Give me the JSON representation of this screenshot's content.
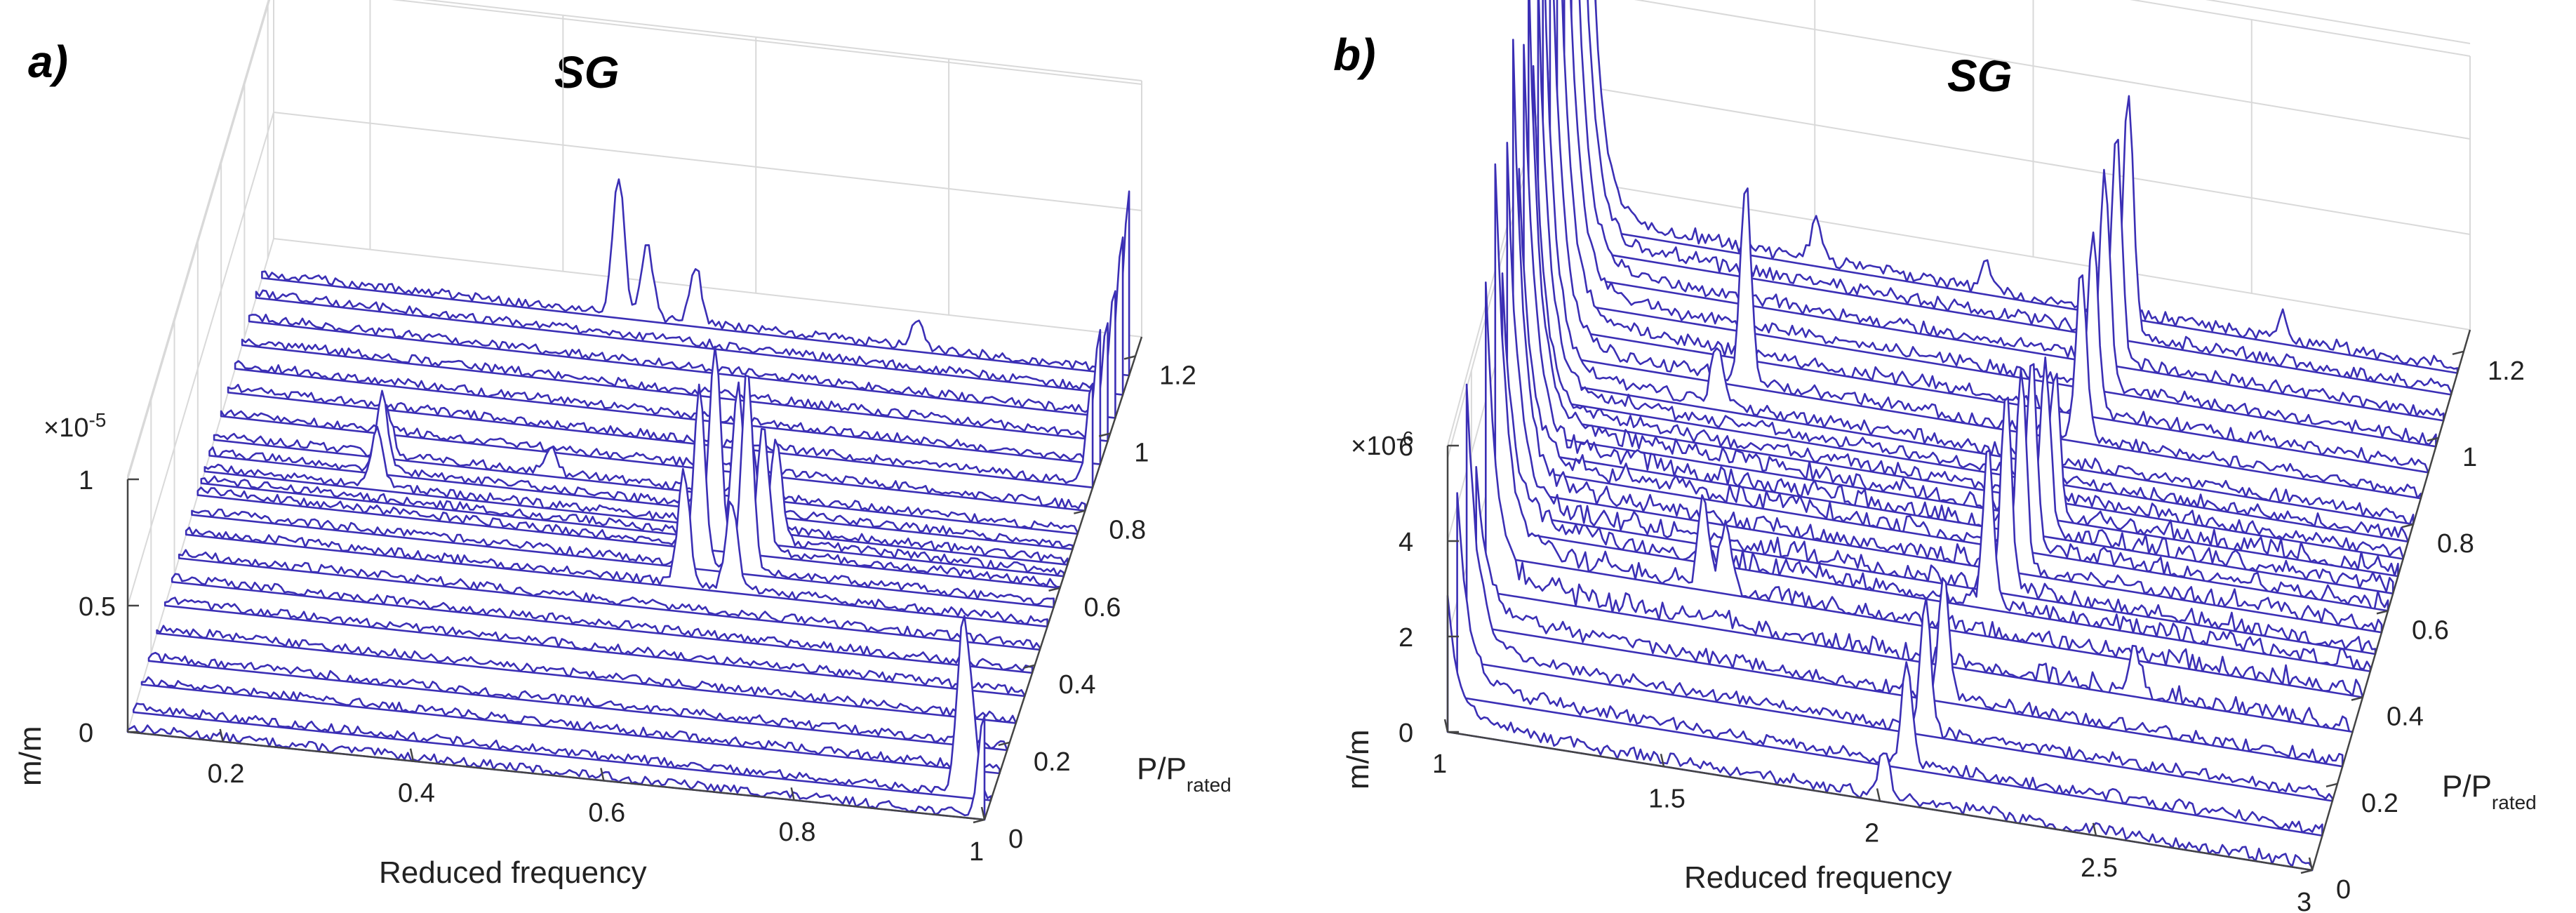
{
  "chart_data": [
    {
      "panel": "a)",
      "type": "line",
      "subtype": "3d-waterfall",
      "title": "SG",
      "xlabel": "Reduced frequency",
      "ylabel": "P/Prated",
      "ylabel_main": "P/P",
      "ylabel_sub": "rated",
      "zlabel": "m/m",
      "zscale": "×10-5",
      "zscale_base": "×10",
      "zscale_exp": "-5",
      "xlim": [
        0.1,
        1.0
      ],
      "ylim": [
        0,
        1.25
      ],
      "zlim": [
        0,
        1.0
      ],
      "xticks": [
        0.2,
        0.4,
        0.6,
        0.8,
        1
      ],
      "xtick_labels": [
        "0.2",
        "0.4",
        "0.6",
        "0.8",
        "1"
      ],
      "yticks": [
        0,
        0.2,
        0.4,
        0.6,
        0.8,
        1,
        1.2
      ],
      "ytick_labels": [
        "0",
        "0.2",
        "0.4",
        "0.6",
        "0.8",
        "1",
        "1.2"
      ],
      "zticks": [
        0,
        0.5,
        1
      ],
      "ztick_labels": [
        "0",
        "0.5",
        "1"
      ],
      "power_levels": [
        0.0,
        0.05,
        0.12,
        0.18,
        0.25,
        0.32,
        0.38,
        0.44,
        0.5,
        0.55,
        0.6,
        0.63,
        0.66,
        0.7,
        0.74,
        0.8,
        0.86,
        0.92,
        0.98,
        1.04,
        1.1,
        1.15
      ],
      "peaks": [
        {
          "p": 0.0,
          "f": 1.0,
          "a": 0.4
        },
        {
          "p": 0.05,
          "f": 0.97,
          "a": 0.6
        },
        {
          "p": 0.05,
          "f": 0.98,
          "a": 0.3
        },
        {
          "p": 0.5,
          "f": 0.62,
          "a": 0.45
        },
        {
          "p": 0.5,
          "f": 0.67,
          "a": 0.35
        },
        {
          "p": 0.55,
          "f": 0.63,
          "a": 0.7
        },
        {
          "p": 0.55,
          "f": 0.68,
          "a": 0.8
        },
        {
          "p": 0.6,
          "f": 0.64,
          "a": 0.8
        },
        {
          "p": 0.6,
          "f": 0.69,
          "a": 0.5
        },
        {
          "p": 0.63,
          "f": 0.66,
          "a": 0.6
        },
        {
          "p": 0.63,
          "f": 0.7,
          "a": 0.4
        },
        {
          "p": 0.66,
          "f": 0.28,
          "a": 0.22
        },
        {
          "p": 0.66,
          "f": 0.67,
          "a": 0.35
        },
        {
          "p": 0.7,
          "f": 0.28,
          "a": 0.3
        },
        {
          "p": 0.74,
          "f": 0.28,
          "a": 0.18
        },
        {
          "p": 0.74,
          "f": 0.45,
          "a": 0.1
        },
        {
          "p": 1.15,
          "f": 0.47,
          "a": 0.55
        },
        {
          "p": 1.15,
          "f": 0.5,
          "a": 0.28
        },
        {
          "p": 1.15,
          "f": 0.55,
          "a": 0.22
        },
        {
          "p": 1.15,
          "f": 0.78,
          "a": 0.1
        },
        {
          "p": 1.15,
          "f": 1.0,
          "a": 0.7
        },
        {
          "p": 1.1,
          "f": 1.0,
          "a": 0.6
        },
        {
          "p": 1.04,
          "f": 1.0,
          "a": 0.5
        },
        {
          "p": 0.98,
          "f": 1.0,
          "a": 0.45
        },
        {
          "p": 0.92,
          "f": 1.0,
          "a": 0.5
        },
        {
          "p": 0.86,
          "f": 1.0,
          "a": 0.4
        }
      ],
      "noise_level": 0.018
    },
    {
      "panel": "b)",
      "type": "line",
      "subtype": "3d-waterfall",
      "title": "SG",
      "xlabel": "Reduced frequency",
      "ylabel": "P/Prated",
      "ylabel_main": "P/P",
      "ylabel_sub": "rated",
      "zlabel": "m/m",
      "zscale": "×10-6",
      "zscale_base": "×10",
      "zscale_exp": "-6",
      "xlim": [
        1.0,
        3.0
      ],
      "ylim": [
        0,
        1.25
      ],
      "zlim": [
        0,
        6
      ],
      "xticks": [
        1,
        1.5,
        2,
        2.5,
        3
      ],
      "xtick_labels": [
        "1",
        "1.5",
        "2",
        "2.5",
        "3"
      ],
      "yticks": [
        0,
        0.2,
        0.4,
        0.6,
        0.8,
        1,
        1.2
      ],
      "ytick_labels": [
        "0",
        "0.2",
        "0.4",
        "0.6",
        "0.8",
        "1",
        "1.2"
      ],
      "zticks": [
        0,
        2,
        4,
        6
      ],
      "ztick_labels": [
        "0",
        "2",
        "4",
        "6"
      ],
      "power_levels": [
        0.0,
        0.08,
        0.16,
        0.24,
        0.32,
        0.4,
        0.46,
        0.5,
        0.55,
        0.6,
        0.64,
        0.68,
        0.72,
        0.76,
        0.8,
        0.86,
        0.92,
        0.98,
        1.04,
        1.1,
        1.15
      ],
      "peaks": [
        {
          "p": 0.0,
          "f": 2.01,
          "a": 1.0
        },
        {
          "p": 0.08,
          "f": 2.04,
          "a": 2.2
        },
        {
          "p": 0.16,
          "f": 2.06,
          "a": 2.8
        },
        {
          "p": 0.24,
          "f": 2.08,
          "a": 2.5
        },
        {
          "p": 0.32,
          "f": 2.5,
          "a": 0.9
        },
        {
          "p": 0.4,
          "f": 1.48,
          "a": 1.8
        },
        {
          "p": 0.4,
          "f": 1.53,
          "a": 1.2
        },
        {
          "p": 0.46,
          "f": 2.12,
          "a": 3.2
        },
        {
          "p": 0.5,
          "f": 2.15,
          "a": 4.0
        },
        {
          "p": 0.55,
          "f": 2.17,
          "a": 4.2
        },
        {
          "p": 0.6,
          "f": 2.18,
          "a": 4.0
        },
        {
          "p": 0.64,
          "f": 2.2,
          "a": 3.5
        },
        {
          "p": 0.68,
          "f": 2.21,
          "a": 3.0
        },
        {
          "p": 0.8,
          "f": 1.4,
          "a": 1.2
        },
        {
          "p": 0.86,
          "f": 1.45,
          "a": 4.2
        },
        {
          "p": 0.86,
          "f": 2.22,
          "a": 3.5
        },
        {
          "p": 0.92,
          "f": 2.23,
          "a": 3.8
        },
        {
          "p": 0.98,
          "f": 2.24,
          "a": 4.5
        },
        {
          "p": 1.04,
          "f": 2.25,
          "a": 4.8
        },
        {
          "p": 1.1,
          "f": 2.26,
          "a": 5.0
        },
        {
          "p": 1.15,
          "f": 1.53,
          "a": 0.8
        },
        {
          "p": 1.15,
          "f": 1.92,
          "a": 0.6
        },
        {
          "p": 1.15,
          "f": 2.6,
          "a": 0.5
        }
      ],
      "low_freq_rise": [
        2.5,
        4.0,
        5.5,
        3.0,
        6.0,
        8.0,
        5.0,
        7.5,
        9.0,
        6.0,
        8.0,
        9.5,
        7.0,
        8.5,
        9.5,
        10.0,
        10.5,
        11.0,
        11.5,
        11.5,
        12.0
      ],
      "noise_level": 0.12
    }
  ]
}
